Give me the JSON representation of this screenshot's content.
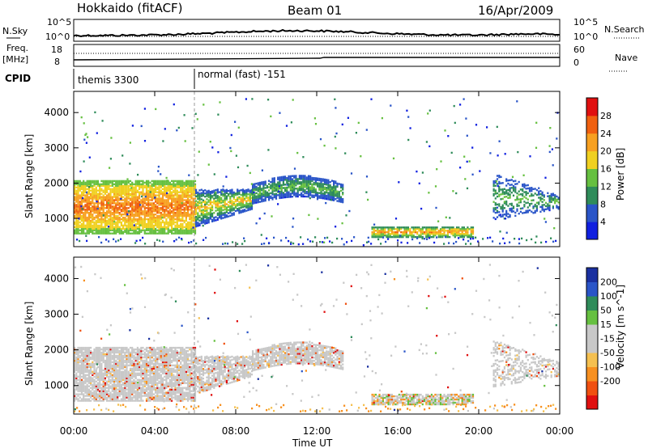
{
  "header": {
    "station": "Hokkaido (fitACF)",
    "beam": "Beam 01",
    "date": "16/Apr/2009"
  },
  "labels": {
    "nsky": "N.Sky",
    "nsearch": "N.Search",
    "freq": "Freq.",
    "mhz": "[MHz]",
    "nave": "Nave",
    "cpid": "CPID",
    "noise_left_top": "10^5",
    "noise_left_bot": "10^0",
    "noise_right_top": "10^5",
    "noise_right_bot": "10^0",
    "freq_left_top": "18",
    "freq_left_bot": "8",
    "nave_right_top": "60",
    "nave_right_bot": "0"
  },
  "cpid": [
    {
      "text": "themis 3300",
      "start_hour": 0
    },
    {
      "text": "normal (fast) -151",
      "start_hour": 6
    }
  ],
  "colors": {
    "power_scale": [
      "#1020e0",
      "#2a55c8",
      "#2f8c5a",
      "#66c040",
      "#f0d020",
      "#f7a020",
      "#f06010",
      "#e01010"
    ],
    "velocity_scale": [
      "#e01010",
      "#f05010",
      "#f79020",
      "#f5c050",
      "#c8c8c8",
      "#c8c8c8",
      "#66c040",
      "#2f8c5a",
      "#2a55c8",
      "#1a30a0"
    ],
    "gray": "#c8c8c8"
  },
  "chart_data": [
    {
      "type": "heatmap",
      "name": "power",
      "ylabel": "Slant Range [km]",
      "yticks": [
        1000,
        2000,
        3000,
        4000
      ],
      "ylim": [
        200,
        4600
      ],
      "colorbar": {
        "title": "Power [dB]",
        "ticks": [
          "4",
          "8",
          "12",
          "16",
          "20",
          "24",
          "28"
        ],
        "range": [
          0,
          32
        ]
      },
      "regions": [
        {
          "x": [
            0,
            6
          ],
          "y": [
            600,
            2200
          ],
          "level": 20
        },
        {
          "x": [
            1,
            5
          ],
          "y": [
            1000,
            1700
          ],
          "level": 26
        },
        {
          "x": [
            6,
            9
          ],
          "y": [
            800,
            1900
          ],
          "level": 14
        },
        {
          "x": [
            9,
            13.3
          ],
          "y": [
            1400,
            2100
          ],
          "level": 10
        },
        {
          "x": [
            14.7,
            19.7
          ],
          "y": [
            500,
            800
          ],
          "level": 18
        },
        {
          "x": [
            20.7,
            23.9
          ],
          "y": [
            900,
            2200
          ],
          "level": 10
        }
      ]
    },
    {
      "type": "heatmap",
      "name": "velocity",
      "ylabel": "Slant Range [km]",
      "yticks": [
        1000,
        2000,
        3000,
        4000
      ],
      "ylim": [
        200,
        4600
      ],
      "colorbar": {
        "title": "Velocity [m s^-1]",
        "ticks": [
          "200",
          "100",
          "50",
          "15",
          "-15",
          "-50",
          "-100",
          "-200"
        ],
        "range": [
          -250,
          250
        ]
      }
    }
  ],
  "xaxis": {
    "title": "Time UT",
    "ticks": [
      "00:00",
      "04:00",
      "08:00",
      "12:00",
      "16:00",
      "20:00",
      "00:00"
    ],
    "range_hours": [
      0,
      24
    ]
  }
}
